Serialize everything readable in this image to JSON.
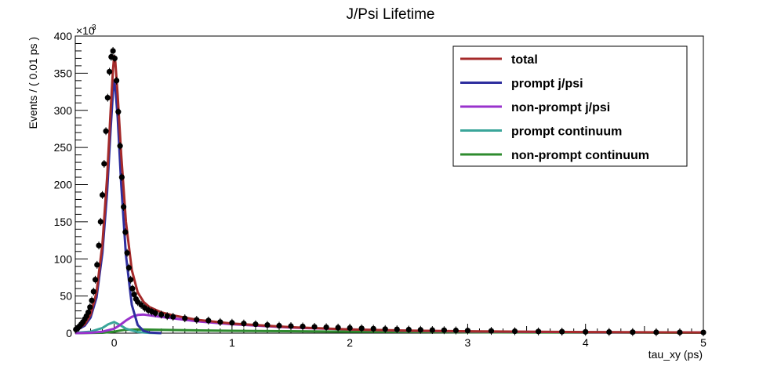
{
  "chart_data": {
    "type": "line",
    "title": "J/Psi Lifetime",
    "xlabel": "tau_xy (ps)",
    "ylabel": "Events / ( 0.01 ps )",
    "y_multiplier_base": "×10",
    "y_multiplier_exp": "3",
    "xlim": [
      -0.33,
      5.0
    ],
    "ylim": [
      0,
      400
    ],
    "x_ticks": [
      0,
      1,
      2,
      3,
      4,
      5
    ],
    "y_ticks": [
      0,
      50,
      100,
      150,
      200,
      250,
      300,
      350,
      400
    ],
    "grid": false,
    "legend_position": "top-right",
    "series": [
      {
        "name": "total",
        "color": "#a52a2a",
        "x": [
          -0.33,
          -0.25,
          -0.2,
          -0.15,
          -0.1,
          -0.06,
          -0.03,
          -0.01,
          0,
          0.01,
          0.03,
          0.06,
          0.1,
          0.15,
          0.2,
          0.25,
          0.3,
          0.4,
          0.5,
          0.7,
          1.0,
          1.5,
          2.0,
          2.5,
          3.0,
          4.0,
          5.0
        ],
        "values": [
          4,
          12,
          25,
          55,
          120,
          210,
          300,
          355,
          373,
          365,
          320,
          240,
          150,
          85,
          55,
          42,
          35,
          28,
          24,
          18,
          13,
          8,
          5,
          3.5,
          2.5,
          1.5,
          1
        ]
      },
      {
        "name": "prompt j/psi",
        "color": "#2e2e9e",
        "x": [
          -0.33,
          -0.25,
          -0.2,
          -0.15,
          -0.1,
          -0.06,
          -0.03,
          -0.01,
          0,
          0.01,
          0.03,
          0.06,
          0.1,
          0.15,
          0.2,
          0.25,
          0.3,
          0.4
        ],
        "values": [
          3,
          10,
          21,
          48,
          108,
          190,
          275,
          325,
          340,
          330,
          290,
          200,
          105,
          38,
          11,
          3,
          1,
          0
        ]
      },
      {
        "name": "non-prompt j/psi",
        "color": "#9932cc",
        "x": [
          -0.33,
          -0.2,
          -0.1,
          0,
          0.05,
          0.1,
          0.15,
          0.2,
          0.25,
          0.3,
          0.4,
          0.5,
          0.7,
          1.0,
          1.5,
          2.0,
          2.5,
          3.0,
          4.0,
          5.0
        ],
        "values": [
          0,
          0.5,
          2,
          6,
          11,
          17,
          22,
          24.5,
          25,
          24,
          22,
          20,
          16,
          12,
          7.5,
          5,
          3.2,
          2.2,
          1.3,
          0.8
        ]
      },
      {
        "name": "prompt continuum",
        "color": "#3aa59a",
        "x": [
          -0.33,
          -0.2,
          -0.1,
          -0.05,
          0,
          0.05,
          0.1,
          0.2,
          0.3,
          0.4
        ],
        "values": [
          0.5,
          2,
          7,
          12,
          15,
          11,
          6,
          1.5,
          0.4,
          0
        ]
      },
      {
        "name": "non-prompt continuum",
        "color": "#2e8b2e",
        "x": [
          -0.33,
          -0.1,
          0,
          0.05,
          0.1,
          0.2,
          0.3,
          0.5,
          1.0,
          2.0,
          3.0,
          4.0,
          5.0
        ],
        "values": [
          0,
          0.5,
          2,
          3.5,
          4.5,
          5,
          4.8,
          4.2,
          3.2,
          2,
          1.2,
          0.8,
          0.5
        ]
      }
    ],
    "data_points": {
      "x": [
        -0.325,
        -0.31,
        -0.295,
        -0.28,
        -0.265,
        -0.25,
        -0.235,
        -0.22,
        -0.205,
        -0.19,
        -0.175,
        -0.16,
        -0.145,
        -0.13,
        -0.115,
        -0.1,
        -0.085,
        -0.07,
        -0.055,
        -0.04,
        -0.025,
        -0.01,
        0.005,
        0.02,
        0.035,
        0.05,
        0.065,
        0.08,
        0.095,
        0.11,
        0.125,
        0.14,
        0.155,
        0.17,
        0.185,
        0.2,
        0.23,
        0.26,
        0.29,
        0.32,
        0.35,
        0.4,
        0.45,
        0.5,
        0.6,
        0.7,
        0.8,
        0.9,
        1.0,
        1.1,
        1.2,
        1.3,
        1.4,
        1.5,
        1.6,
        1.7,
        1.8,
        1.9,
        2.0,
        2.1,
        2.2,
        2.3,
        2.4,
        2.5,
        2.6,
        2.7,
        2.8,
        2.9,
        3.0,
        3.2,
        3.4,
        3.6,
        3.8,
        4.0,
        4.2,
        4.4,
        4.6,
        4.8,
        5.0
      ],
      "values": [
        5,
        7,
        9,
        12,
        15,
        19,
        23,
        28,
        35,
        44,
        56,
        72,
        92,
        118,
        150,
        186,
        228,
        272,
        317,
        352,
        372,
        380,
        370,
        340,
        298,
        252,
        210,
        170,
        136,
        108,
        88,
        72,
        60,
        52,
        46,
        42,
        38,
        34,
        31,
        29,
        27,
        25,
        23,
        22,
        20,
        18,
        17,
        15,
        14,
        13,
        12,
        11,
        10,
        9.5,
        9,
        8.5,
        8,
        7.5,
        7,
        6.5,
        6,
        5.5,
        5.2,
        4.8,
        4.5,
        4.2,
        4,
        3.7,
        3.5,
        3,
        2.6,
        2.3,
        2,
        1.8,
        1.6,
        1.4,
        1.2,
        1.1,
        1
      ]
    }
  }
}
